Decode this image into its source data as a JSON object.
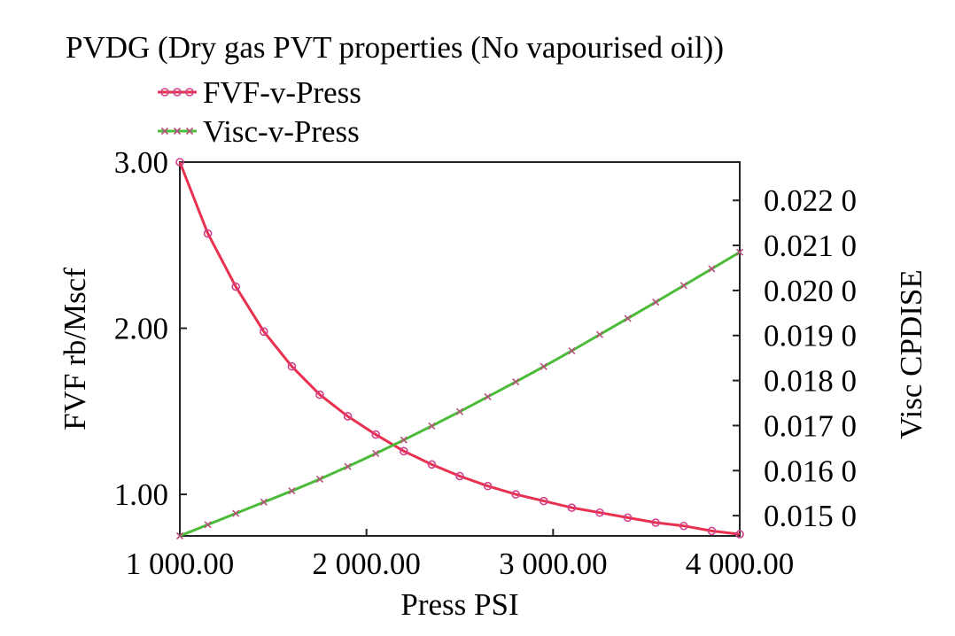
{
  "chart_data": {
    "type": "line",
    "title": "PVDG (Dry gas PVT properties (No vapourised oil))",
    "xlabel": "Press PSI",
    "ylabel": "FVF rb/Mscf",
    "y2label": "Visc CPDISE",
    "xlim": [
      1000,
      4000
    ],
    "ylim": [
      0.75,
      3.0
    ],
    "y2lim": [
      0.01455,
      0.02285
    ],
    "x_ticks": [
      1000,
      2000,
      3000,
      4000
    ],
    "x_tick_labels": [
      "1 000.00",
      "2 000.00",
      "3 000.00",
      "4 000.00"
    ],
    "y_ticks": [
      1.0,
      2.0,
      3.0
    ],
    "y_tick_labels": [
      "1.00",
      "2.00",
      "3.00"
    ],
    "y2_ticks": [
      0.015,
      0.016,
      0.017,
      0.018,
      0.019,
      0.02,
      0.021,
      0.022
    ],
    "y2_tick_labels": [
      "0.015 0",
      "0.016 0",
      "0.017 0",
      "0.018 0",
      "0.019 0",
      "0.020 0",
      "0.021 0",
      "0.022 0"
    ],
    "legend_position": "top-left",
    "series": [
      {
        "name": "FVF-v-Press",
        "axis": "left",
        "color": "#e8314f",
        "marker": "circle",
        "x": [
          1000,
          1150,
          1300,
          1450,
          1600,
          1750,
          1900,
          2050,
          2200,
          2350,
          2500,
          2650,
          2800,
          2950,
          3100,
          3250,
          3400,
          3550,
          3700,
          3850,
          4000
        ],
        "values": [
          3.0,
          2.57,
          2.25,
          1.98,
          1.77,
          1.6,
          1.47,
          1.36,
          1.26,
          1.18,
          1.11,
          1.05,
          1.0,
          0.96,
          0.92,
          0.89,
          0.86,
          0.83,
          0.81,
          0.78,
          0.76
        ]
      },
      {
        "name": "Visc-v-Press",
        "axis": "right",
        "color": "#4cbb3a",
        "marker": "x",
        "x": [
          1000,
          1150,
          1300,
          1450,
          1600,
          1750,
          1900,
          2050,
          2200,
          2350,
          2500,
          2650,
          2800,
          2950,
          3100,
          3250,
          3400,
          3550,
          3700,
          3850,
          4000
        ],
        "values": [
          0.01455,
          0.0148,
          0.01505,
          0.0153,
          0.01555,
          0.01581,
          0.01609,
          0.01638,
          0.01668,
          0.01699,
          0.01731,
          0.01764,
          0.01797,
          0.01831,
          0.01866,
          0.01902,
          0.01938,
          0.01974,
          0.02011,
          0.02048,
          0.02085
        ]
      }
    ]
  }
}
